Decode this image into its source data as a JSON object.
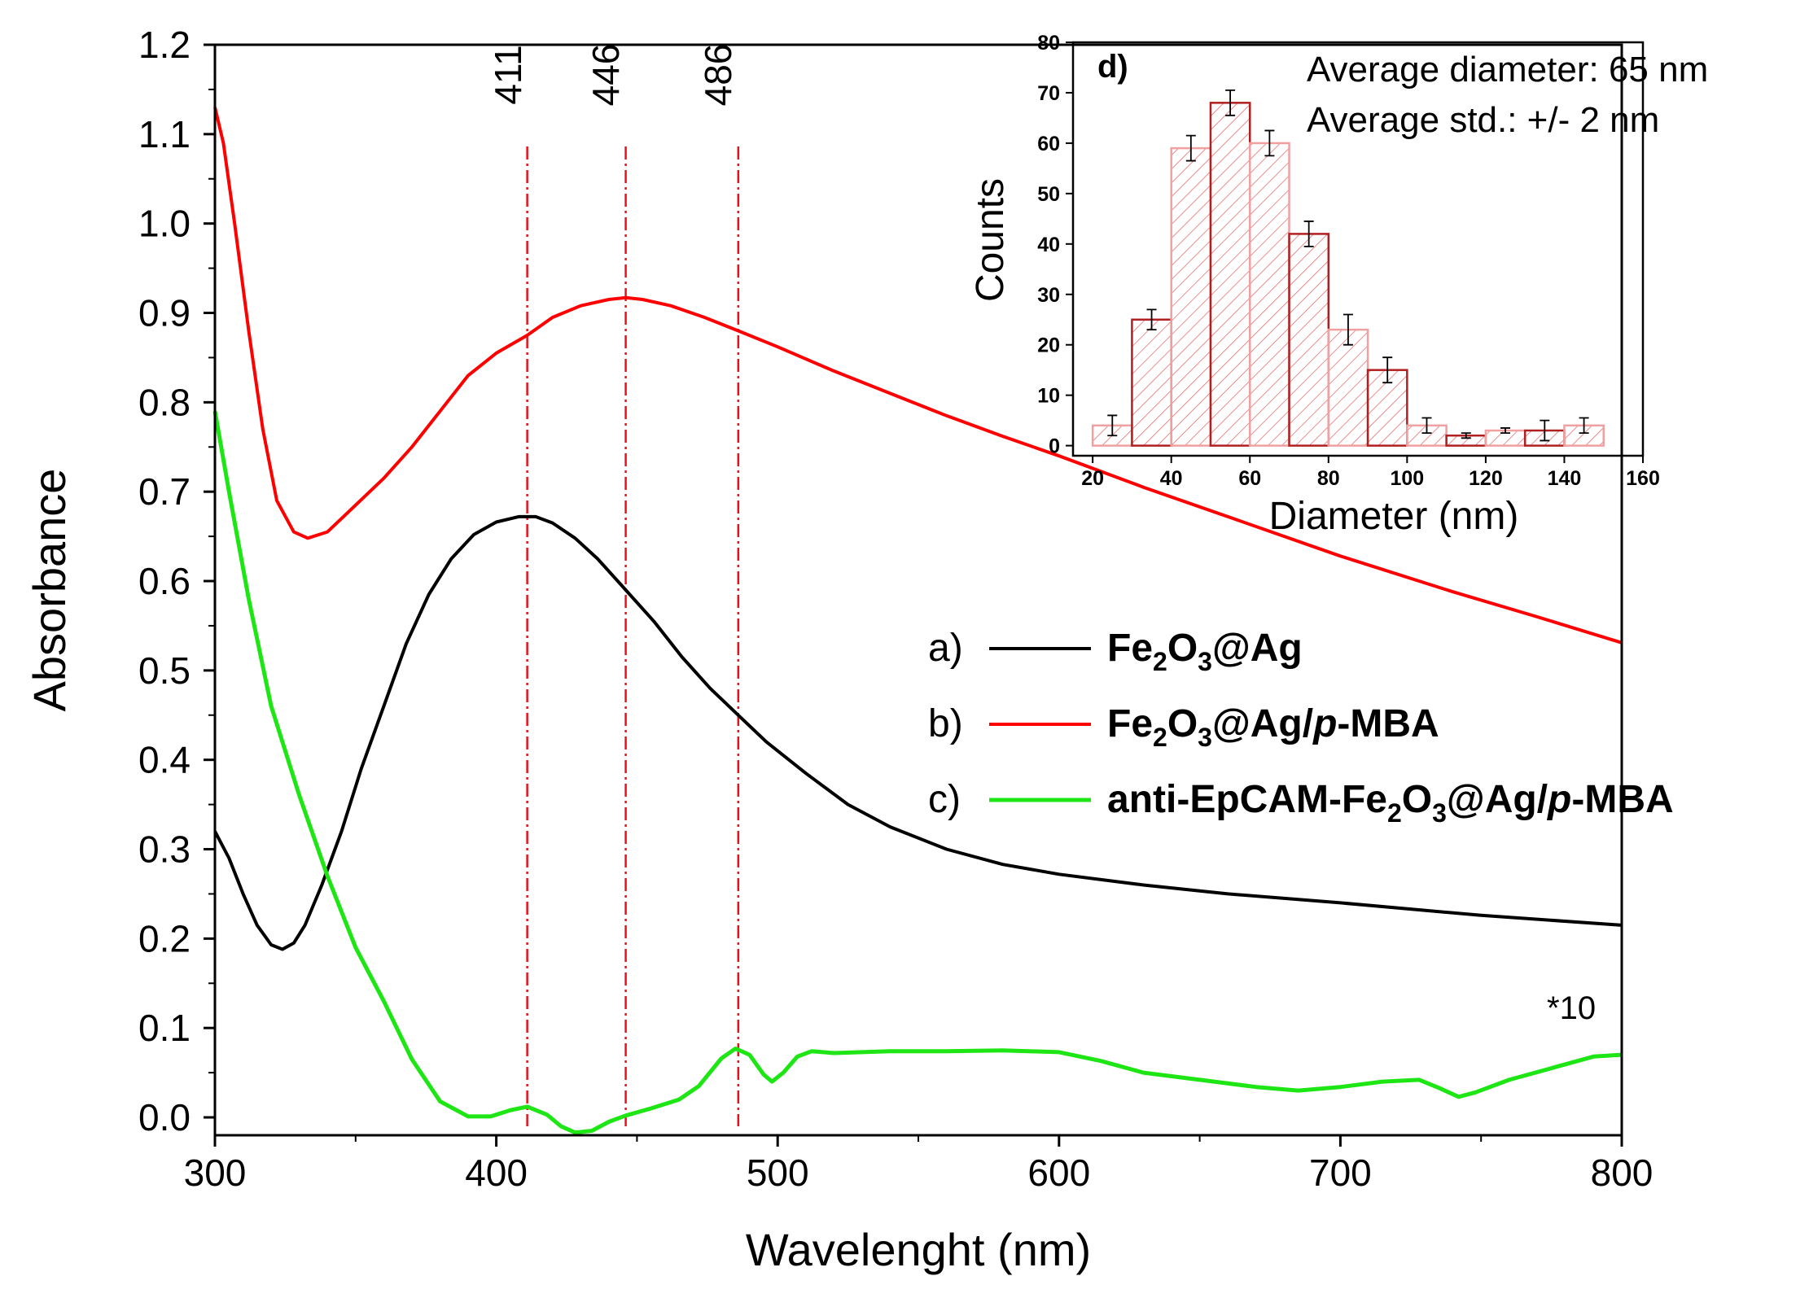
{
  "chart_data": [
    {
      "type": "line",
      "xlabel": "Wavelenght (nm)",
      "ylabel": "Absorbance",
      "xlim": [
        300,
        800
      ],
      "ylim": [
        -0.02,
        1.2
      ],
      "xticks": [
        300,
        400,
        500,
        600,
        700,
        800
      ],
      "xtick_labels": [
        "300",
        "400",
        "500",
        "600",
        "700",
        "800"
      ],
      "yticks": [
        0.0,
        0.1,
        0.2,
        0.3,
        0.4,
        0.5,
        0.6,
        0.7,
        0.8,
        0.9,
        1.0,
        1.1,
        1.2
      ],
      "ytick_labels": [
        "0.0",
        "0.1",
        "0.2",
        "0.3",
        "0.4",
        "0.5",
        "0.6",
        "0.7",
        "0.8",
        "0.9",
        "1.0",
        "1.1",
        "1.2"
      ],
      "reference_lines": [
        {
          "x": 411,
          "label": "411",
          "color": "#e8101a"
        },
        {
          "x": 446,
          "label": "446",
          "color": "#e8101a"
        },
        {
          "x": 486,
          "label": "486",
          "color": "#e8101a"
        }
      ],
      "series": [
        {
          "name": "a",
          "prefix": "a)",
          "label_main": "Fe",
          "label_sub1": "2",
          "label_mid": "O",
          "label_sub2": "3",
          "label_end": "@Ag",
          "color": "#000000",
          "points": [
            [
              300,
              0.32
            ],
            [
              305,
              0.29
            ],
            [
              310,
              0.25
            ],
            [
              315,
              0.215
            ],
            [
              320,
              0.193
            ],
            [
              324,
              0.188
            ],
            [
              328,
              0.195
            ],
            [
              332,
              0.215
            ],
            [
              338,
              0.26
            ],
            [
              345,
              0.32
            ],
            [
              352,
              0.39
            ],
            [
              360,
              0.46
            ],
            [
              368,
              0.53
            ],
            [
              376,
              0.585
            ],
            [
              384,
              0.625
            ],
            [
              392,
              0.652
            ],
            [
              400,
              0.666
            ],
            [
              408,
              0.672
            ],
            [
              414,
              0.672
            ],
            [
              420,
              0.665
            ],
            [
              428,
              0.648
            ],
            [
              436,
              0.625
            ],
            [
              446,
              0.59
            ],
            [
              456,
              0.555
            ],
            [
              466,
              0.515
            ],
            [
              476,
              0.48
            ],
            [
              486,
              0.45
            ],
            [
              496,
              0.42
            ],
            [
              510,
              0.385
            ],
            [
              525,
              0.35
            ],
            [
              540,
              0.325
            ],
            [
              560,
              0.3
            ],
            [
              580,
              0.283
            ],
            [
              600,
              0.272
            ],
            [
              630,
              0.26
            ],
            [
              660,
              0.25
            ],
            [
              700,
              0.24
            ],
            [
              750,
              0.226
            ],
            [
              800,
              0.215
            ]
          ]
        },
        {
          "name": "b",
          "prefix": "b)",
          "label_main": "Fe",
          "label_sub1": "2",
          "label_mid": "O",
          "label_sub2": "3",
          "label_end": "@Ag/",
          "label_italic": "p",
          "label_tail": "-MBA",
          "color": "#ff0000",
          "points": [
            [
              300,
              1.13
            ],
            [
              303,
              1.09
            ],
            [
              307,
              1.0
            ],
            [
              312,
              0.88
            ],
            [
              317,
              0.77
            ],
            [
              322,
              0.69
            ],
            [
              328,
              0.655
            ],
            [
              333,
              0.648
            ],
            [
              340,
              0.655
            ],
            [
              350,
              0.685
            ],
            [
              360,
              0.715
            ],
            [
              370,
              0.75
            ],
            [
              380,
              0.79
            ],
            [
              390,
              0.83
            ],
            [
              400,
              0.855
            ],
            [
              411,
              0.875
            ],
            [
              420,
              0.895
            ],
            [
              430,
              0.908
            ],
            [
              440,
              0.915
            ],
            [
              446,
              0.917
            ],
            [
              452,
              0.915
            ],
            [
              462,
              0.908
            ],
            [
              474,
              0.895
            ],
            [
              486,
              0.88
            ],
            [
              500,
              0.862
            ],
            [
              520,
              0.835
            ],
            [
              540,
              0.81
            ],
            [
              560,
              0.785
            ],
            [
              580,
              0.762
            ],
            [
              600,
              0.74
            ],
            [
              630,
              0.705
            ],
            [
              660,
              0.672
            ],
            [
              700,
              0.628
            ],
            [
              740,
              0.588
            ],
            [
              770,
              0.56
            ],
            [
              800,
              0.531
            ]
          ]
        },
        {
          "name": "c",
          "prefix": "c)",
          "label_pre": "anti-EpCAM-Fe",
          "label_sub1": "2",
          "label_mid": "O",
          "label_sub2": "3",
          "label_end": "@Ag/",
          "label_italic": "p",
          "label_tail": "-MBA",
          "color": "#1ee614",
          "points": [
            [
              300,
              0.79
            ],
            [
              305,
              0.7
            ],
            [
              312,
              0.58
            ],
            [
              320,
              0.46
            ],
            [
              330,
              0.36
            ],
            [
              340,
              0.27
            ],
            [
              350,
              0.19
            ],
            [
              360,
              0.13
            ],
            [
              370,
              0.065
            ],
            [
              380,
              0.018
            ],
            [
              390,
              0.001
            ],
            [
              398,
              0.001
            ],
            [
              405,
              0.008
            ],
            [
              411,
              0.012
            ],
            [
              418,
              0.003
            ],
            [
              423,
              -0.01
            ],
            [
              428,
              -0.017
            ],
            [
              434,
              -0.015
            ],
            [
              440,
              -0.005
            ],
            [
              446,
              0.002
            ],
            [
              455,
              0.01
            ],
            [
              465,
              0.02
            ],
            [
              472,
              0.035
            ],
            [
              480,
              0.066
            ],
            [
              485,
              0.077
            ],
            [
              490,
              0.07
            ],
            [
              495,
              0.048
            ],
            [
              498,
              0.04
            ],
            [
              502,
              0.05
            ],
            [
              507,
              0.068
            ],
            [
              512,
              0.074
            ],
            [
              520,
              0.072
            ],
            [
              540,
              0.074
            ],
            [
              560,
              0.074
            ],
            [
              580,
              0.075
            ],
            [
              600,
              0.073
            ],
            [
              615,
              0.063
            ],
            [
              630,
              0.05
            ],
            [
              650,
              0.042
            ],
            [
              670,
              0.034
            ],
            [
              685,
              0.03
            ],
            [
              700,
              0.034
            ],
            [
              715,
              0.04
            ],
            [
              728,
              0.042
            ],
            [
              735,
              0.033
            ],
            [
              742,
              0.023
            ],
            [
              748,
              0.028
            ],
            [
              760,
              0.042
            ],
            [
              775,
              0.055
            ],
            [
              790,
              0.068
            ],
            [
              800,
              0.07
            ]
          ]
        }
      ],
      "multiplier_label": "*10"
    },
    {
      "type": "bar",
      "panel_label": "d)",
      "xlabel": "Diameter (nm)",
      "ylabel": "Counts",
      "xlim": [
        15,
        160
      ],
      "ylim": [
        -2,
        80
      ],
      "xticks": [
        20,
        40,
        60,
        80,
        100,
        120,
        140,
        160
      ],
      "xtick_labels": [
        "20",
        "40",
        "60",
        "80",
        "100",
        "120",
        "140",
        "160"
      ],
      "yticks": [
        0,
        10,
        20,
        30,
        40,
        50,
        60,
        70,
        80
      ],
      "ytick_labels": [
        "0",
        "10",
        "20",
        "30",
        "40",
        "50",
        "60",
        "70",
        "80"
      ],
      "bin_width": 10,
      "bin_centers": [
        25,
        35,
        45,
        55,
        65,
        75,
        85,
        95,
        105,
        115,
        125,
        135,
        145
      ],
      "values": [
        4,
        25,
        59,
        68,
        60,
        42,
        23,
        15,
        4,
        2,
        3,
        3,
        4
      ],
      "errors": [
        2,
        2,
        2.5,
        2.5,
        2.5,
        2.5,
        3,
        2.5,
        1.5,
        0.5,
        0.5,
        2,
        1.5
      ],
      "annotations": [
        "Average diameter: 65 nm",
        "Average std.: +/- 2 nm"
      ]
    }
  ]
}
